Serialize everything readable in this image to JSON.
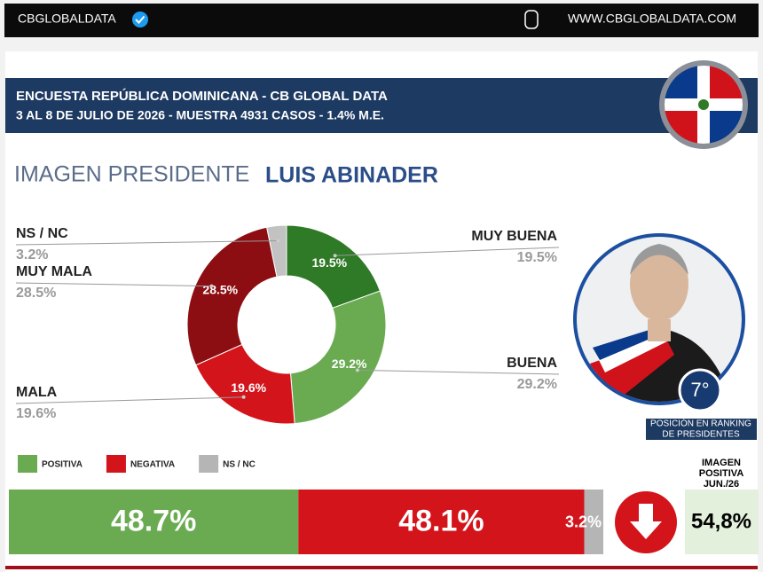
{
  "header": {
    "brand": "CBGLOBALDATA",
    "website": "WWW.CBGLOBALDATA.COM"
  },
  "survey": {
    "line1": "ENCUESTA REPÚBLICA DOMINICANA - CB GLOBAL DATA",
    "line2": "3 AL 8 DE JULIO DE 2026 - MUESTRA 4931 CASOS - 1.4% M.E."
  },
  "ranking": {
    "position": "7°",
    "caption": [
      "POSICIÓN EN RANKING",
      "DE PRESIDENTES"
    ]
  },
  "previous": {
    "label": [
      "IMAGEN",
      "POSITIVA",
      "JUN./26"
    ],
    "value_label": "54,8%"
  },
  "chart_data": [
    {
      "type": "pie",
      "title": "IMAGEN PRESIDENTE",
      "subtitle": "LUIS ABINADER",
      "donut": true,
      "categories": [
        "MUY BUENA",
        "BUENA",
        "MALA",
        "MUY MALA",
        "NS / NC"
      ],
      "values": [
        19.5,
        29.2,
        19.6,
        28.5,
        3.2
      ],
      "value_labels": [
        "19.5%",
        "29.2%",
        "19.6%",
        "28.5%",
        "3.2%"
      ],
      "colors": [
        "#2f7a26",
        "#6aab52",
        "#d3141b",
        "#8c0e12",
        "#c2c2c2"
      ]
    },
    {
      "type": "stacked_bar",
      "orientation": "horizontal",
      "legend": "top-left",
      "series": [
        {
          "name": "POSITIVA",
          "color": "#6aab52",
          "values": [
            48.7
          ],
          "value_labels": [
            "48.7%"
          ]
        },
        {
          "name": "NEGATIVA",
          "color": "#d3141b",
          "values": [
            48.1
          ],
          "value_labels": [
            "48.1%"
          ]
        },
        {
          "name": "NS / NC",
          "color": "#b5b5b5",
          "values": [
            3.2
          ],
          "value_labels": [
            "3.2%"
          ]
        }
      ]
    }
  ]
}
